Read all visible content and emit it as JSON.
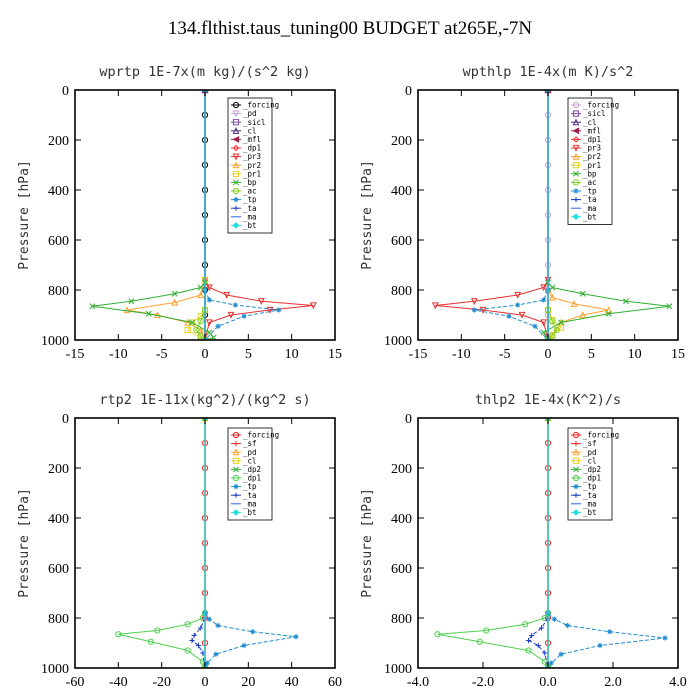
{
  "title": "134.flthist.taus_tuning00  BUDGET at265E,-7N",
  "chart_data": [
    {
      "type": "line",
      "title": "wprtp  1E-7x(m kg)/(s^2 kg)",
      "ylabel": "Pressure [hPa]",
      "xlim": [
        -15,
        15
      ],
      "ylim": [
        1000,
        0
      ],
      "xticks": [
        -15,
        -10,
        -5,
        0,
        5,
        10,
        15
      ],
      "xtick_labels": [
        "-15",
        "-10",
        "-5",
        "0",
        "5",
        "10",
        "15"
      ],
      "yticks": [
        0,
        200,
        400,
        600,
        800,
        1000
      ],
      "ytick_labels": [
        "0",
        "200",
        "400",
        "600",
        "800",
        "1000"
      ],
      "legend_position": "top-right",
      "series": [
        {
          "name": "_forcing",
          "color": "#000000",
          "marker": "o",
          "x": [
            0,
            0,
            0,
            0,
            0,
            0,
            0,
            0,
            0,
            0,
            0
          ],
          "y": [
            0,
            100,
            200,
            300,
            400,
            500,
            600,
            700,
            800,
            900,
            1000
          ]
        },
        {
          "name": "_pd",
          "color": "#c8a0d8",
          "marker": "v",
          "x": [
            0,
            0
          ],
          "y": [
            0,
            1000
          ]
        },
        {
          "name": "_sicl",
          "color": "#7a4aa0",
          "marker": "s",
          "x": [
            0,
            0
          ],
          "y": [
            0,
            1000
          ]
        },
        {
          "name": "_cl",
          "color": "#4b2a80",
          "marker": "^",
          "x": [
            0,
            0
          ],
          "y": [
            0,
            1000
          ]
        },
        {
          "name": "_mfl",
          "color": "#a0204a",
          "marker": "<",
          "x": [
            0,
            0
          ],
          "y": [
            0,
            1000
          ]
        },
        {
          "name": "_dp1",
          "color": "#ff3030",
          "marker": "d",
          "x": [
            0,
            0
          ],
          "y": [
            0,
            1000
          ]
        },
        {
          "name": "_pr3",
          "color": "#e83030",
          "marker": "v",
          "x": [
            0,
            0.5,
            2.5,
            6.5,
            12.5,
            7.5,
            3.0,
            0.5,
            0
          ],
          "y": [
            760,
            790,
            820,
            845,
            862,
            880,
            900,
            930,
            1000
          ]
        },
        {
          "name": "_pr2",
          "color": "#ffa030",
          "marker": "^",
          "x": [
            0,
            -0.5,
            -3.5,
            -9.0,
            -5.5,
            -2.0,
            -0.5,
            0
          ],
          "y": [
            760,
            820,
            850,
            880,
            900,
            930,
            960,
            1000
          ]
        },
        {
          "name": "_pr1",
          "color": "#e8d020",
          "marker": "s",
          "x": [
            0,
            0,
            -0.5,
            -1.5,
            -2.0,
            -0.5,
            0
          ],
          "y": [
            760,
            880,
            905,
            930,
            960,
            990,
            1000
          ]
        },
        {
          "name": "_bp",
          "color": "#30b030",
          "marker": "x",
          "x": [
            0,
            -0.5,
            -3.5,
            -8.5,
            -13.0,
            -6.5,
            -1.5,
            0.5,
            1.0,
            0
          ],
          "y": [
            770,
            790,
            815,
            845,
            865,
            895,
            930,
            970,
            990,
            1000
          ]
        },
        {
          "name": "_ac",
          "color": "#80d020",
          "marker": "o",
          "x": [
            0,
            -0.5,
            -1.0,
            -0.5,
            0
          ],
          "y": [
            880,
            925,
            960,
            985,
            1000
          ]
        },
        {
          "name": "_tp",
          "color": "#1e8cd0",
          "marker": "*",
          "x": [
            0,
            0.5,
            3.5,
            8.5,
            4.5,
            1.5,
            0
          ],
          "y": [
            800,
            840,
            860,
            880,
            905,
            945,
            1000
          ]
        },
        {
          "name": "_ta",
          "color": "#2040c0",
          "marker": "+",
          "x": [
            0,
            0
          ],
          "y": [
            0,
            1000
          ]
        },
        {
          "name": "_ma",
          "color": "#3060e0",
          "marker": "-",
          "x": [
            0,
            0
          ],
          "y": [
            0,
            1000
          ]
        },
        {
          "name": "_bt",
          "color": "#20e0e0",
          "marker": "D",
          "x": [
            0,
            0
          ],
          "y": [
            0,
            1000
          ]
        }
      ]
    },
    {
      "type": "line",
      "title": "wpthlp  1E-4x(m K)/s^2",
      "ylabel": "Pressure [hPa]",
      "xlim": [
        -15,
        15
      ],
      "ylim": [
        1000,
        0
      ],
      "xticks": [
        -15,
        -10,
        -5,
        0,
        5,
        10,
        15
      ],
      "xtick_labels": [
        "-15",
        "-10",
        "-5",
        "0",
        "5",
        "10",
        "15"
      ],
      "yticks": [
        0,
        200,
        400,
        600,
        800,
        1000
      ],
      "ytick_labels": [
        "0",
        "200",
        "400",
        "600",
        "800",
        "1000"
      ],
      "legend_position": "top-right",
      "series": [
        {
          "name": "_forcing",
          "color": "#c8a0d8",
          "marker": "o",
          "x": [
            0,
            0,
            0,
            0,
            0,
            0,
            0,
            0,
            0,
            0,
            0
          ],
          "y": [
            0,
            100,
            200,
            300,
            400,
            500,
            600,
            700,
            800,
            900,
            1000
          ]
        },
        {
          "name": "_sicl",
          "color": "#7a4aa0",
          "marker": "s",
          "x": [
            0,
            0
          ],
          "y": [
            0,
            1000
          ]
        },
        {
          "name": "_cl",
          "color": "#4b2a80",
          "marker": "^",
          "x": [
            0,
            0
          ],
          "y": [
            0,
            1000
          ]
        },
        {
          "name": "_mfl",
          "color": "#a0204a",
          "marker": "<",
          "x": [
            0,
            0
          ],
          "y": [
            0,
            1000
          ]
        },
        {
          "name": "_dp1",
          "color": "#ff3030",
          "marker": "d",
          "x": [
            0,
            0
          ],
          "y": [
            0,
            1000
          ]
        },
        {
          "name": "_pr3",
          "color": "#e83030",
          "marker": "v",
          "x": [
            0,
            -0.5,
            -3.5,
            -8.5,
            -13.0,
            -7.5,
            -3.0,
            -0.5,
            0
          ],
          "y": [
            760,
            790,
            820,
            845,
            862,
            880,
            900,
            930,
            1000
          ]
        },
        {
          "name": "_pr2",
          "color": "#ffa030",
          "marker": "^",
          "x": [
            0,
            0.5,
            3.0,
            7.0,
            4.0,
            1.5,
            0
          ],
          "y": [
            800,
            830,
            855,
            880,
            900,
            930,
            1000
          ]
        },
        {
          "name": "_pr1",
          "color": "#e8d020",
          "marker": "s",
          "x": [
            0,
            0.5,
            1.5,
            0.5,
            0
          ],
          "y": [
            880,
            920,
            950,
            980,
            1000
          ]
        },
        {
          "name": "_bp",
          "color": "#30b030",
          "marker": "x",
          "x": [
            0,
            0.5,
            4.0,
            9.0,
            14.0,
            7.0,
            1.5,
            -0.5,
            0
          ],
          "y": [
            770,
            790,
            815,
            845,
            865,
            895,
            930,
            970,
            1000
          ]
        },
        {
          "name": "_ac",
          "color": "#80d020",
          "marker": "o",
          "x": [
            0,
            0.5,
            1.0,
            0.5,
            0
          ],
          "y": [
            880,
            925,
            960,
            985,
            1000
          ]
        },
        {
          "name": "_tp",
          "color": "#1e8cd0",
          "marker": "*",
          "x": [
            0,
            -0.5,
            -3.5,
            -8.5,
            -4.5,
            -1.5,
            0
          ],
          "y": [
            800,
            840,
            860,
            880,
            905,
            945,
            1000
          ]
        },
        {
          "name": "_ta",
          "color": "#2040c0",
          "marker": "+",
          "x": [
            0,
            0
          ],
          "y": [
            0,
            1000
          ]
        },
        {
          "name": "_ma",
          "color": "#3060e0",
          "marker": "-",
          "x": [
            0,
            0
          ],
          "y": [
            0,
            1000
          ]
        },
        {
          "name": "_bt",
          "color": "#20e0e0",
          "marker": "D",
          "x": [
            0,
            0
          ],
          "y": [
            0,
            1000
          ]
        }
      ]
    },
    {
      "type": "line",
      "title": "rtp2  1E-11x(kg^2)/(kg^2 s)",
      "ylabel": "Pressure [hPa]",
      "xlim": [
        -60,
        60
      ],
      "ylim": [
        1000,
        0
      ],
      "xticks": [
        -60,
        -40,
        -20,
        0,
        20,
        40,
        60
      ],
      "xtick_labels": [
        "-60",
        "-40",
        "-20",
        "0",
        "20",
        "40",
        "60"
      ],
      "yticks": [
        0,
        200,
        400,
        600,
        800,
        1000
      ],
      "ytick_labels": [
        "0",
        "200",
        "400",
        "600",
        "800",
        "1000"
      ],
      "legend_position": "top-right",
      "series": [
        {
          "name": "_forcing",
          "color": "#ff2020",
          "marker": "o",
          "x": [
            0,
            0,
            0,
            0,
            0,
            0,
            0,
            0,
            0,
            0,
            0
          ],
          "y": [
            0,
            100,
            200,
            300,
            400,
            500,
            600,
            700,
            800,
            900,
            1000
          ]
        },
        {
          "name": "_sf",
          "color": "#e83030",
          "marker": "+",
          "x": [
            0,
            0
          ],
          "y": [
            0,
            1000
          ]
        },
        {
          "name": "_pd",
          "color": "#ffa030",
          "marker": "^",
          "x": [
            0,
            0
          ],
          "y": [
            0,
            1000
          ]
        },
        {
          "name": "_cl",
          "color": "#e8d020",
          "marker": "s",
          "x": [
            0,
            0
          ],
          "y": [
            0,
            1000
          ]
        },
        {
          "name": "_dp2",
          "color": "#30b030",
          "marker": "x",
          "x": [
            0,
            0
          ],
          "y": [
            0,
            1000
          ]
        },
        {
          "name": "_dp1",
          "color": "#50d050",
          "marker": "o",
          "x": [
            0,
            -1,
            -8,
            -22,
            -40,
            -25,
            -8,
            -1,
            0
          ],
          "y": [
            780,
            800,
            825,
            850,
            865,
            895,
            930,
            975,
            1000
          ]
        },
        {
          "name": "_tp",
          "color": "#1e8cd0",
          "marker": "*",
          "x": [
            0,
            2,
            6,
            22,
            42,
            18,
            5,
            1,
            0
          ],
          "y": [
            780,
            805,
            830,
            855,
            875,
            910,
            945,
            980,
            1000
          ]
        },
        {
          "name": "_ta",
          "color": "#2040c0",
          "marker": "+",
          "x": [
            0,
            -2,
            -5,
            -6,
            -3,
            -1,
            0
          ],
          "y": [
            800,
            840,
            870,
            890,
            910,
            940,
            1000
          ]
        },
        {
          "name": "_ma",
          "color": "#3060e0",
          "marker": "-",
          "x": [
            0,
            0
          ],
          "y": [
            0,
            1000
          ]
        },
        {
          "name": "_bt",
          "color": "#20e0e0",
          "marker": "D",
          "x": [
            0,
            0
          ],
          "y": [
            0,
            1000
          ]
        }
      ]
    },
    {
      "type": "line",
      "title": "thlp2  1E-4x(K^2)/s",
      "ylabel": "Pressure [hPa]",
      "xlim": [
        -4,
        4
      ],
      "ylim": [
        1000,
        0
      ],
      "xticks": [
        -4,
        -2,
        0,
        2,
        4
      ],
      "xtick_labels": [
        "-4.0",
        "-2.0",
        "0.0",
        "2.0",
        "4.0"
      ],
      "yticks": [
        0,
        200,
        400,
        600,
        800,
        1000
      ],
      "ytick_labels": [
        "0",
        "200",
        "400",
        "600",
        "800",
        "1000"
      ],
      "legend_position": "top-right",
      "series": [
        {
          "name": "_forcing",
          "color": "#ff2020",
          "marker": "o",
          "x": [
            0,
            0,
            0,
            0,
            0,
            0,
            0,
            0,
            0,
            0,
            0
          ],
          "y": [
            0,
            100,
            200,
            300,
            400,
            500,
            600,
            700,
            800,
            900,
            1000
          ]
        },
        {
          "name": "_sf",
          "color": "#e83030",
          "marker": "+",
          "x": [
            0,
            0
          ],
          "y": [
            0,
            1000
          ]
        },
        {
          "name": "_pd",
          "color": "#ffa030",
          "marker": "^",
          "x": [
            0,
            0
          ],
          "y": [
            0,
            1000
          ]
        },
        {
          "name": "_cl",
          "color": "#e8d020",
          "marker": "s",
          "x": [
            0,
            0
          ],
          "y": [
            0,
            1000
          ]
        },
        {
          "name": "_dp2",
          "color": "#30b030",
          "marker": "x",
          "x": [
            0,
            0
          ],
          "y": [
            0,
            1000
          ]
        },
        {
          "name": "_dp1",
          "color": "#50d050",
          "marker": "o",
          "x": [
            0,
            -0.1,
            -0.7,
            -1.9,
            -3.4,
            -2.1,
            -0.6,
            -0.1,
            0
          ],
          "y": [
            780,
            800,
            825,
            850,
            865,
            895,
            930,
            975,
            1000
          ]
        },
        {
          "name": "_tp",
          "color": "#1e8cd0",
          "marker": "*",
          "x": [
            0,
            0.2,
            0.6,
            1.9,
            3.6,
            1.6,
            0.4,
            0.1,
            0
          ],
          "y": [
            780,
            805,
            830,
            855,
            880,
            910,
            945,
            980,
            1000
          ]
        },
        {
          "name": "_ta",
          "color": "#2040c0",
          "marker": "+",
          "x": [
            0,
            -0.2,
            -0.5,
            -0.6,
            -0.3,
            -0.1,
            0
          ],
          "y": [
            800,
            840,
            870,
            890,
            910,
            940,
            1000
          ]
        },
        {
          "name": "_ma",
          "color": "#3060e0",
          "marker": "-",
          "x": [
            0,
            0
          ],
          "y": [
            0,
            1000
          ]
        },
        {
          "name": "_bt",
          "color": "#20e0e0",
          "marker": "D",
          "x": [
            0,
            0
          ],
          "y": [
            0,
            1000
          ]
        }
      ]
    }
  ]
}
